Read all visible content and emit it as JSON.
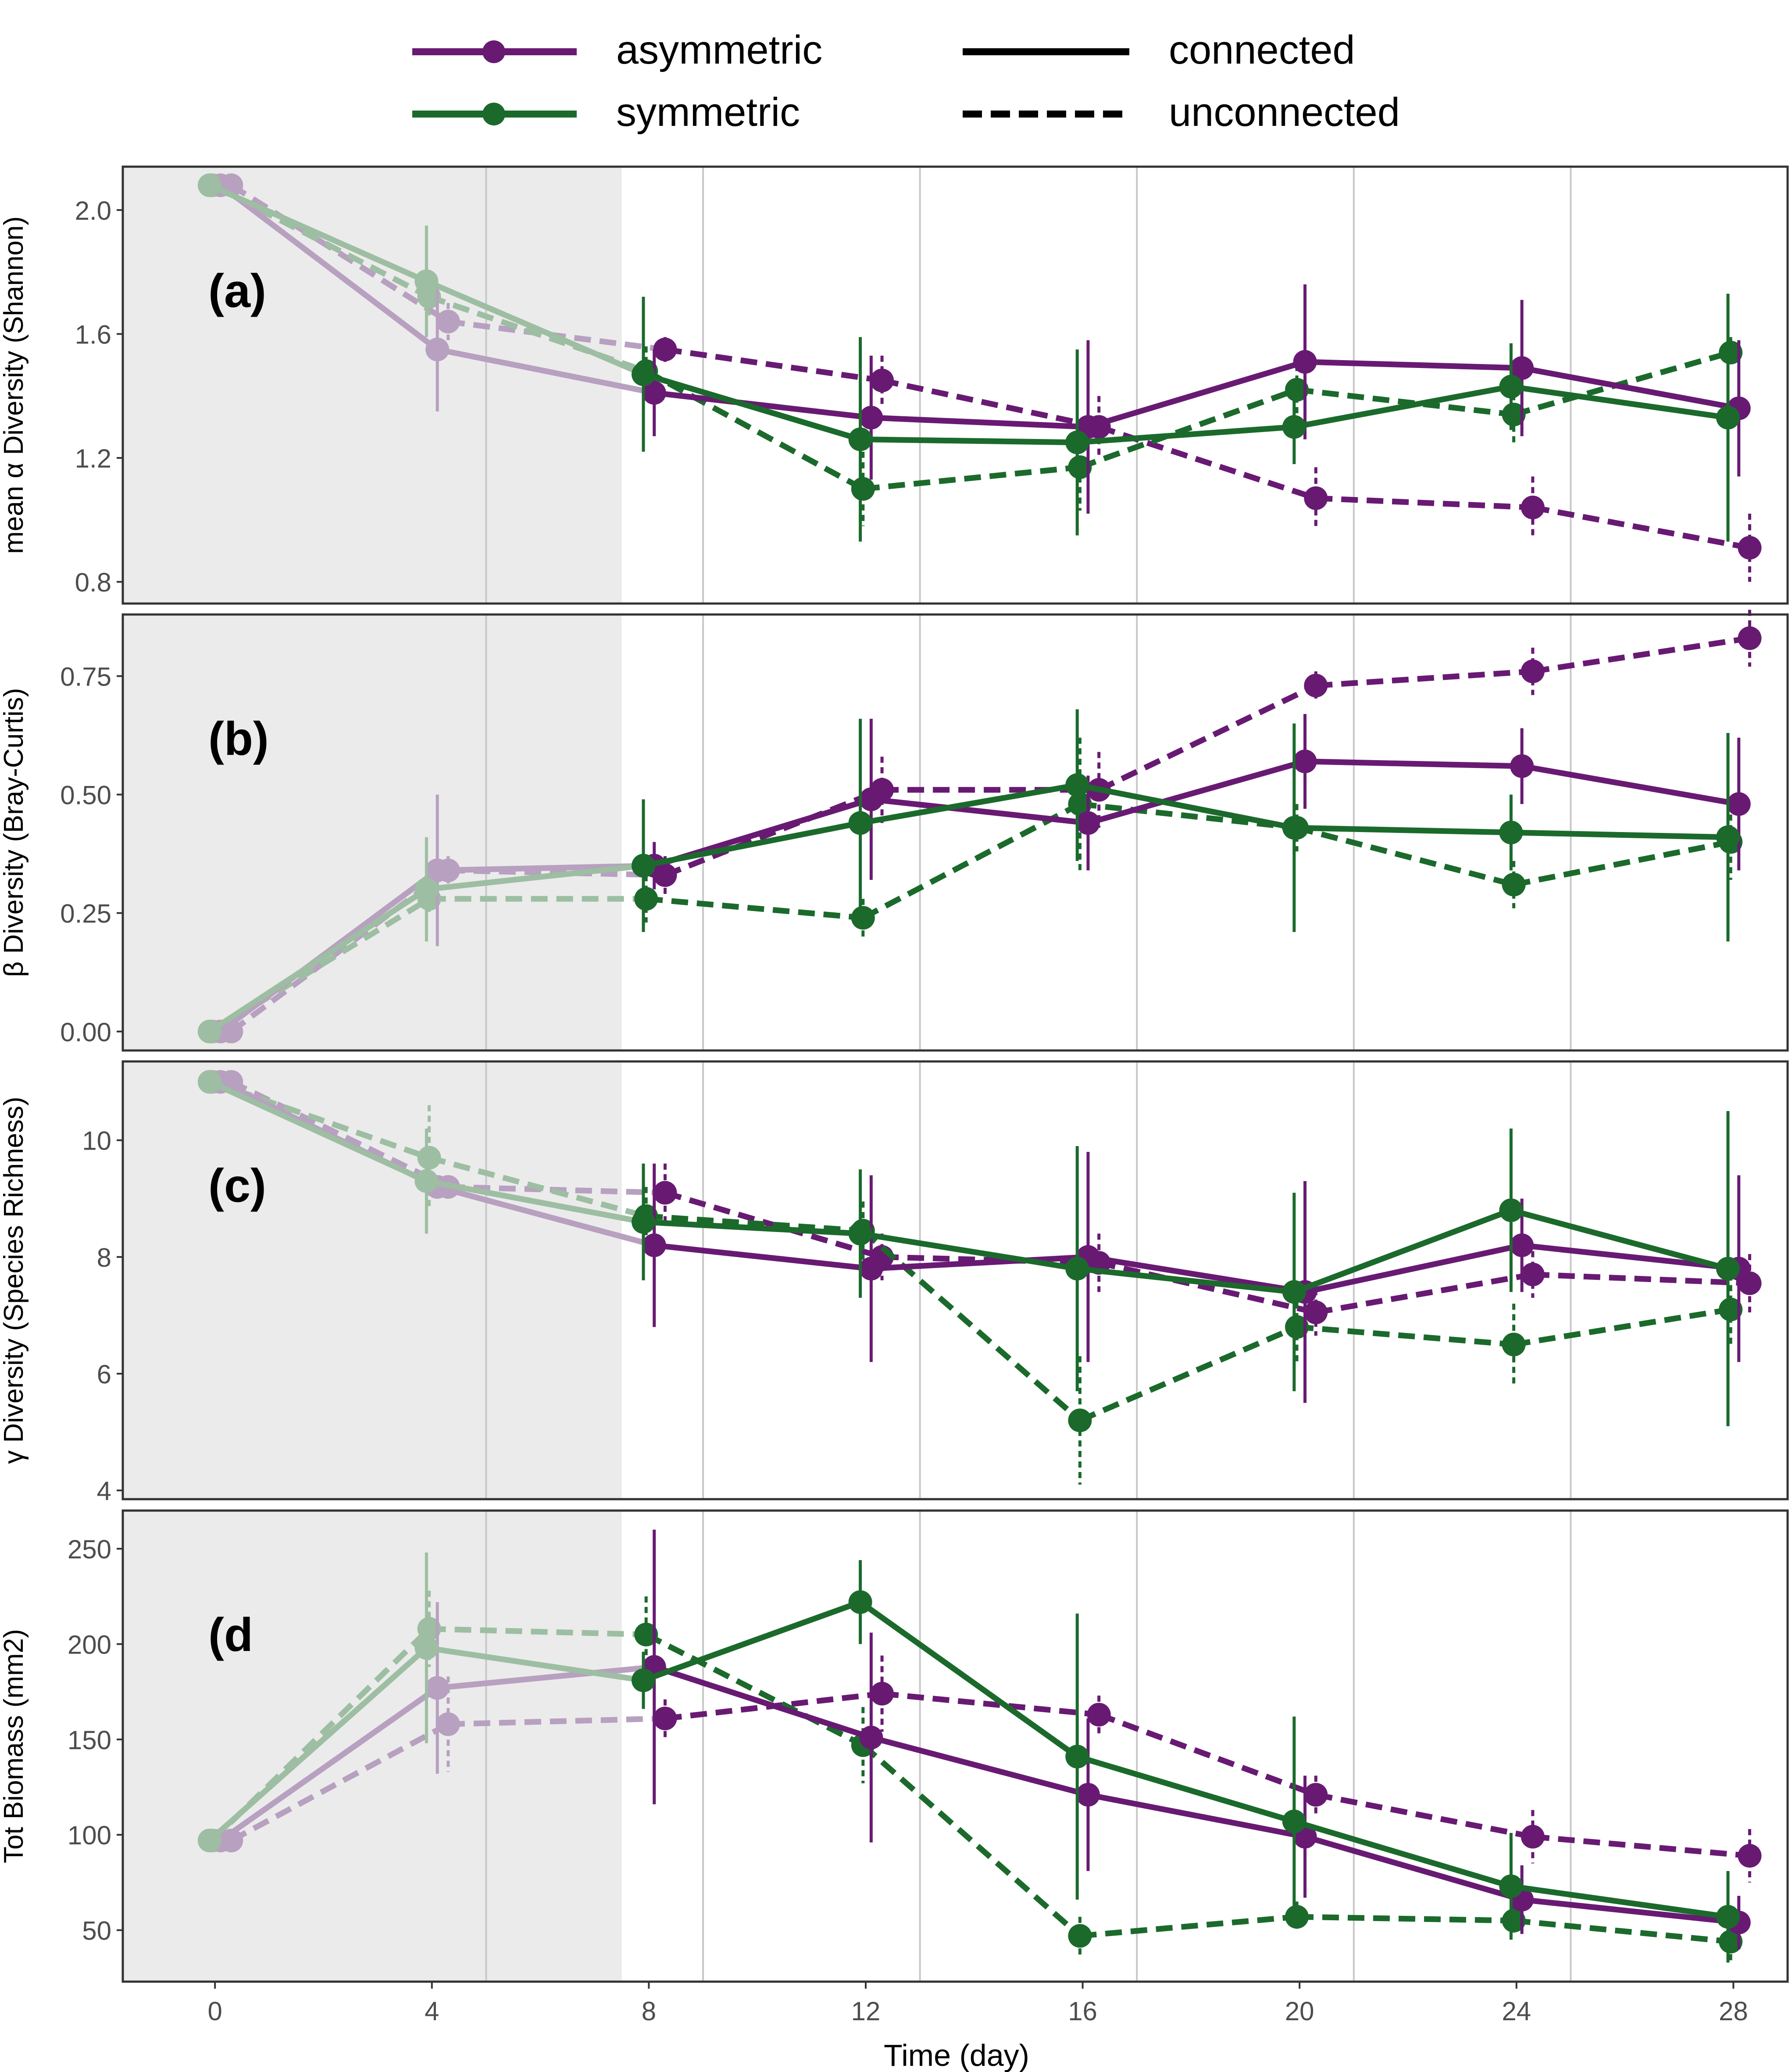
{
  "colors": {
    "asymmetric": "#681a73",
    "symmetric": "#1b6a2c",
    "asymmetric_faded": "#b8a0c0",
    "symmetric_faded": "#9dbea2",
    "shade": "#ebebeb",
    "gridline": "#c8c8c8",
    "frame": "#333333"
  },
  "legend": {
    "treatments": [
      {
        "key": "asymmetric",
        "label": "asymmetric"
      },
      {
        "key": "symmetric",
        "label": "symmetric"
      }
    ],
    "connectivity": [
      {
        "key": "connected",
        "label": "connected",
        "line": "solid"
      },
      {
        "key": "unconnected",
        "label": "unconnected",
        "line": "dashed"
      }
    ]
  },
  "chart_data": {
    "type": "line",
    "xlabel": "Time (day)",
    "x_ticks": [
      0,
      4,
      8,
      12,
      16,
      20,
      24,
      28
    ],
    "xlim": [
      -1.7,
      29
    ],
    "shaded_region": [
      -1.7,
      7.5
    ],
    "vertical_gridlines": [
      5,
      9,
      13,
      17,
      21,
      25
    ],
    "panels": [
      {
        "letter": "(a)",
        "ylabel": "mean α Diversity (Shannon)",
        "ylim": [
          0.73,
          2.14
        ],
        "y_ticks": [
          0.8,
          1.2,
          1.6,
          2.0
        ],
        "y_tick_labels": [
          "0.8",
          "1.2",
          "1.6",
          "2.0"
        ],
        "series": [
          {
            "treatment": "asymmetric",
            "connectivity": "connected",
            "x": [
              0,
              4,
              8,
              12,
              16,
              20,
              24,
              28
            ],
            "y": [
              2.08,
              1.55,
              1.41,
              1.33,
              1.3,
              1.51,
              1.49,
              1.36
            ],
            "err": [
              0,
              0.2,
              0.14,
              0.2,
              0.28,
              0.25,
              0.22,
              0.22
            ]
          },
          {
            "treatment": "asymmetric",
            "connectivity": "unconnected",
            "x": [
              0,
              4,
              8,
              12,
              16,
              20,
              24,
              28
            ],
            "y": [
              2.08,
              1.64,
              1.55,
              1.45,
              1.3,
              1.07,
              1.04,
              0.91
            ],
            "err": [
              0,
              0.06,
              0.04,
              0.08,
              0.1,
              0.1,
              0.1,
              0.11
            ]
          },
          {
            "treatment": "symmetric",
            "connectivity": "connected",
            "x": [
              0,
              4,
              8,
              12,
              16,
              20,
              24,
              28
            ],
            "y": [
              2.08,
              1.77,
              1.47,
              1.26,
              1.25,
              1.3,
              1.43,
              1.33
            ],
            "err": [
              0,
              0.18,
              0.25,
              0.33,
              0.3,
              0.12,
              0.14,
              0.4
            ]
          },
          {
            "treatment": "symmetric",
            "connectivity": "unconnected",
            "x": [
              0,
              4,
              8,
              12,
              16,
              20,
              24,
              28
            ],
            "y": [
              2.08,
              1.72,
              1.48,
              1.1,
              1.17,
              1.42,
              1.34,
              1.54
            ],
            "err": [
              0,
              0.06,
              0.08,
              0.12,
              0.14,
              0.08,
              0.1,
              0.05
            ]
          }
        ]
      },
      {
        "letter": "(b)",
        "ylabel": "β Diversity (Bray-Curtis)",
        "ylim": [
          -0.04,
          0.88
        ],
        "y_ticks": [
          0.0,
          0.25,
          0.5,
          0.75
        ],
        "y_tick_labels": [
          "0.00",
          "0.25",
          "0.50",
          "0.75"
        ],
        "series": [
          {
            "treatment": "asymmetric",
            "connectivity": "connected",
            "x": [
              0,
              4,
              8,
              12,
              16,
              20,
              24,
              28
            ],
            "y": [
              0.0,
              0.34,
              0.35,
              0.49,
              0.44,
              0.57,
              0.56,
              0.48
            ],
            "err": [
              0,
              0.16,
              0.05,
              0.17,
              0.1,
              0.1,
              0.08,
              0.14
            ]
          },
          {
            "treatment": "asymmetric",
            "connectivity": "unconnected",
            "x": [
              0,
              4,
              8,
              12,
              16,
              20,
              24,
              28
            ],
            "y": [
              0.0,
              0.34,
              0.33,
              0.51,
              0.51,
              0.73,
              0.76,
              0.83
            ],
            "err": [
              0,
              0.03,
              0.04,
              0.07,
              0.08,
              0.03,
              0.05,
              0.06
            ]
          },
          {
            "treatment": "symmetric",
            "connectivity": "connected",
            "x": [
              0,
              4,
              8,
              12,
              16,
              20,
              24,
              28
            ],
            "y": [
              0.0,
              0.3,
              0.35,
              0.44,
              0.52,
              0.43,
              0.42,
              0.41
            ],
            "err": [
              0,
              0.11,
              0.14,
              0.22,
              0.16,
              0.22,
              0.08,
              0.22
            ]
          },
          {
            "treatment": "symmetric",
            "connectivity": "unconnected",
            "x": [
              0,
              4,
              8,
              12,
              16,
              20,
              24,
              28
            ],
            "y": [
              0.0,
              0.28,
              0.28,
              0.24,
              0.48,
              0.43,
              0.31,
              0.4
            ],
            "err": [
              0,
              0.03,
              0.05,
              0.04,
              0.14,
              0.05,
              0.05,
              0.08
            ]
          }
        ]
      },
      {
        "letter": "(c)",
        "ylabel": "γ Diversity (Species Richness)",
        "ylim": [
          3.85,
          11.35
        ],
        "y_ticks": [
          4,
          6,
          8,
          10
        ],
        "y_tick_labels": [
          "4",
          "6",
          "8",
          "10"
        ],
        "series": [
          {
            "treatment": "asymmetric",
            "connectivity": "connected",
            "x": [
              0,
              4,
              8,
              12,
              16,
              20,
              24,
              28
            ],
            "y": [
              11.0,
              9.2,
              8.2,
              7.8,
              8.0,
              7.4,
              8.2,
              7.8
            ],
            "err": [
              0,
              0.2,
              1.4,
              1.6,
              1.8,
              1.9,
              0.8,
              1.6
            ]
          },
          {
            "treatment": "asymmetric",
            "connectivity": "unconnected",
            "x": [
              0,
              4,
              8,
              12,
              16,
              20,
              24,
              28
            ],
            "y": [
              11.0,
              9.2,
              9.1,
              8.0,
              7.9,
              7.05,
              7.7,
              7.55
            ],
            "err": [
              0,
              0.2,
              0.5,
              0.4,
              0.5,
              0.4,
              0.4,
              0.5
            ]
          },
          {
            "treatment": "symmetric",
            "connectivity": "connected",
            "x": [
              0,
              4,
              8,
              12,
              16,
              20,
              24,
              28
            ],
            "y": [
              11.0,
              9.3,
              8.6,
              8.4,
              7.8,
              7.4,
              8.8,
              7.8
            ],
            "err": [
              0,
              0.9,
              1.0,
              1.1,
              2.1,
              1.7,
              1.4,
              2.7
            ]
          },
          {
            "treatment": "symmetric",
            "connectivity": "unconnected",
            "x": [
              0,
              4,
              8,
              12,
              16,
              20,
              24,
              28
            ],
            "y": [
              11.0,
              9.7,
              8.7,
              8.45,
              5.2,
              6.8,
              6.5,
              7.1
            ],
            "err": [
              0,
              0.9,
              0.5,
              0.5,
              1.1,
              0.6,
              0.7,
              0.6
            ]
          }
        ]
      },
      {
        "letter": "(d",
        "ylabel": "Tot Biomass (mm2)",
        "ylim": [
          23,
          270
        ],
        "y_ticks": [
          50,
          100,
          150,
          200,
          250
        ],
        "y_tick_labels": [
          "50",
          "100",
          "150",
          "200",
          "250"
        ],
        "series": [
          {
            "treatment": "asymmetric",
            "connectivity": "connected",
            "x": [
              0,
              4,
              8,
              12,
              16,
              20,
              24,
              28
            ],
            "y": [
              97,
              177,
              188,
              151,
              121,
              99,
              66,
              54
            ],
            "err": [
              0,
              45,
              72,
              55,
              40,
              32,
              18,
              14
            ]
          },
          {
            "treatment": "asymmetric",
            "connectivity": "unconnected",
            "x": [
              0,
              4,
              8,
              12,
              16,
              20,
              24,
              28
            ],
            "y": [
              97,
              158,
              161,
              174,
              163,
              121,
              99,
              89
            ],
            "err": [
              0,
              25,
              10,
              20,
              10,
              10,
              14,
              14
            ]
          },
          {
            "treatment": "symmetric",
            "connectivity": "connected",
            "x": [
              0,
              4,
              8,
              12,
              16,
              20,
              24,
              28
            ],
            "y": [
              97,
              198,
              181,
              222,
              141,
              107,
              73,
              57
            ],
            "err": [
              0,
              50,
              15,
              22,
              75,
              55,
              28,
              24
            ]
          },
          {
            "treatment": "symmetric",
            "connectivity": "unconnected",
            "x": [
              0,
              4,
              8,
              12,
              16,
              20,
              24,
              28
            ],
            "y": [
              97,
              208,
              205,
              147,
              47,
              57,
              55,
              44
            ],
            "err": [
              0,
              20,
              20,
              20,
              10,
              8,
              8,
              10
            ]
          }
        ]
      }
    ]
  }
}
